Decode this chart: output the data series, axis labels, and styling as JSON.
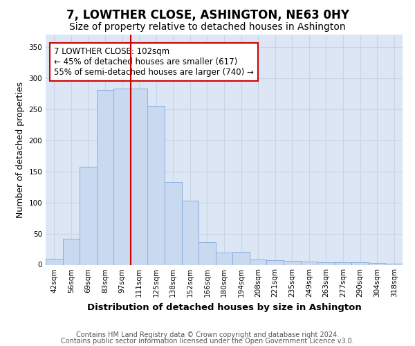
{
  "title": "7, LOWTHER CLOSE, ASHINGTON, NE63 0HY",
  "subtitle": "Size of property relative to detached houses in Ashington",
  "xlabel": "Distribution of detached houses by size in Ashington",
  "ylabel": "Number of detached properties",
  "bar_labels": [
    "42sqm",
    "56sqm",
    "69sqm",
    "83sqm",
    "97sqm",
    "111sqm",
    "125sqm",
    "138sqm",
    "152sqm",
    "166sqm",
    "180sqm",
    "194sqm",
    "208sqm",
    "221sqm",
    "235sqm",
    "249sqm",
    "263sqm",
    "277sqm",
    "290sqm",
    "304sqm",
    "318sqm"
  ],
  "bar_values": [
    9,
    42,
    157,
    281,
    283,
    283,
    255,
    133,
    103,
    36,
    20,
    21,
    8,
    7,
    6,
    5,
    4,
    4,
    4,
    3,
    2
  ],
  "bar_color": "#c9d9ef",
  "bar_edgecolor": "#8aafe0",
  "vline_x": 4.5,
  "vline_color": "#cc0000",
  "annotation_text": "7 LOWTHER CLOSE: 102sqm\n← 45% of detached houses are smaller (617)\n55% of semi-detached houses are larger (740) →",
  "annotation_box_color": "#ffffff",
  "annotation_box_edgecolor": "#cc0000",
  "ylim": [
    0,
    370
  ],
  "yticks": [
    0,
    50,
    100,
    150,
    200,
    250,
    300,
    350
  ],
  "grid_color": "#c8d4e8",
  "background_color": "#dce6f5",
  "footer_line1": "Contains HM Land Registry data © Crown copyright and database right 2024.",
  "footer_line2": "Contains public sector information licensed under the Open Government Licence v3.0.",
  "title_fontsize": 12,
  "subtitle_fontsize": 10,
  "axis_label_fontsize": 9,
  "tick_fontsize": 7.5,
  "annotation_fontsize": 8.5,
  "footer_fontsize": 7
}
